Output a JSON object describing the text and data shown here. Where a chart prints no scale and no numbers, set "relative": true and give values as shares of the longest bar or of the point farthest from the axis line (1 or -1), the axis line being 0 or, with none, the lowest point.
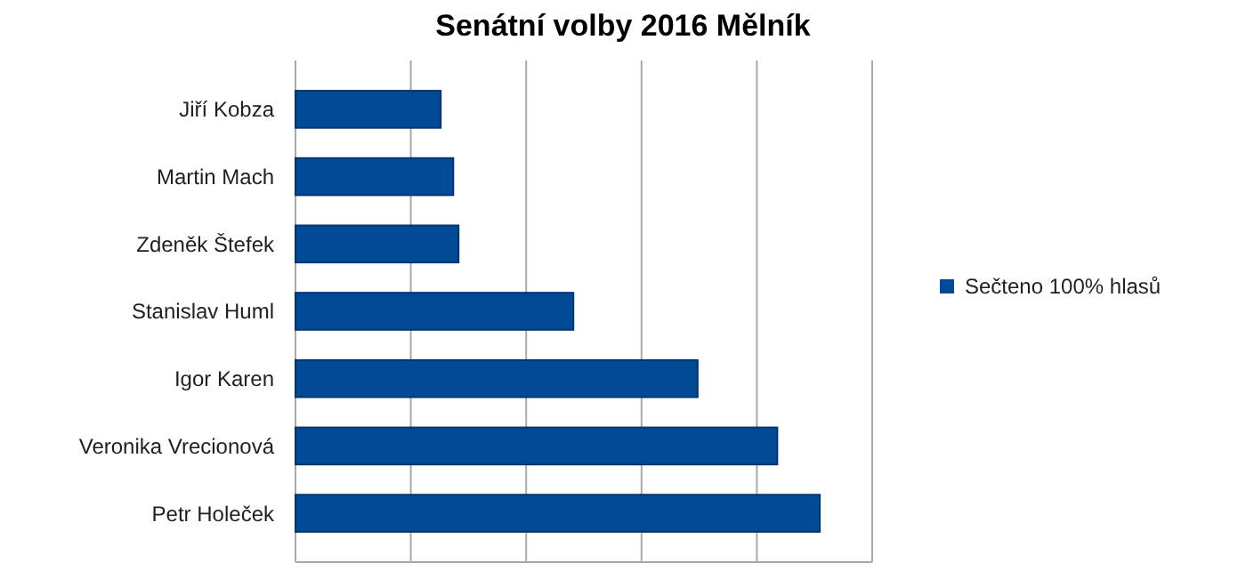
{
  "chart_data": {
    "type": "bar",
    "orientation": "horizontal",
    "relative": true,
    "title": "Senátní volby 2016 Mělník",
    "categories": [
      "Jiří Kobza",
      "Martin Mach",
      "Zdeněk Štefek",
      "Stanislav Huml",
      "Igor Karen",
      "Veronika Vrecionová",
      "Petr Holeček"
    ],
    "series": [
      {
        "name": "Sečteno 100% hlasů",
        "color": "#004a96",
        "values": [
          0.277,
          0.301,
          0.311,
          0.53,
          0.767,
          0.919,
          1
        ]
      }
    ],
    "grid": "x",
    "legend": "right"
  }
}
